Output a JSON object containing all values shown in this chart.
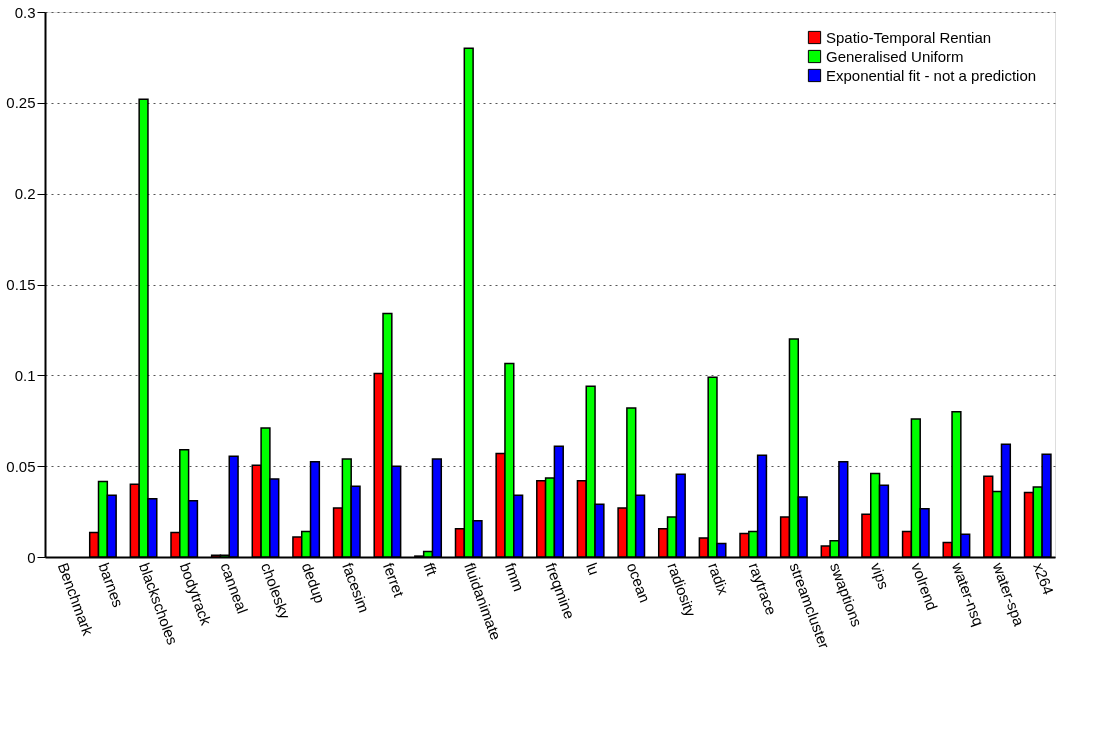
{
  "chart_data": {
    "type": "bar",
    "categories": [
      "Benchmark",
      "barnes",
      "blackscholes",
      "bodytrack",
      "canneal",
      "cholesky",
      "dedup",
      "facesim",
      "ferret",
      "fft",
      "fluidanimate",
      "fmm",
      "freqmine",
      "lu",
      "ocean",
      "radiosity",
      "radix",
      "raytrace",
      "streamcluster",
      "swaptions",
      "vips",
      "volrend",
      "water-nsq",
      "water-spa",
      "x264"
    ],
    "series": [
      {
        "name": "Spatio-Temporal Rentian",
        "color": "#ff0000",
        "values": [
          null,
          0.0135,
          0.04,
          0.0135,
          0.001,
          0.0505,
          0.011,
          0.027,
          0.101,
          0.0005,
          0.0155,
          0.057,
          0.042,
          0.042,
          0.027,
          0.0155,
          0.0105,
          0.013,
          0.022,
          0.006,
          0.0235,
          0.014,
          0.008,
          0.0445,
          0.0355
        ]
      },
      {
        "name": "Generalised Uniform",
        "color": "#00ff00",
        "values": [
          null,
          0.0415,
          0.252,
          0.059,
          0.001,
          0.071,
          0.014,
          0.054,
          0.134,
          0.003,
          0.28,
          0.1065,
          0.0435,
          0.094,
          0.082,
          0.022,
          0.099,
          0.014,
          0.12,
          0.009,
          0.046,
          0.076,
          0.08,
          0.036,
          0.0385
        ]
      },
      {
        "name": "Exponential fit - not a prediction",
        "color": "#0000ff",
        "values": [
          null,
          0.034,
          0.032,
          0.031,
          0.0555,
          0.043,
          0.0525,
          0.039,
          0.05,
          0.054,
          0.02,
          0.034,
          0.061,
          0.029,
          0.034,
          0.0455,
          0.0075,
          0.056,
          0.033,
          0.0525,
          0.0395,
          0.0265,
          0.0125,
          0.062,
          0.0565
        ]
      }
    ],
    "ylim": [
      0,
      0.3
    ],
    "yticks": [
      0,
      0.05,
      0.1,
      0.15,
      0.2,
      0.25,
      0.3
    ],
    "grid": "y",
    "legend": "top right"
  }
}
